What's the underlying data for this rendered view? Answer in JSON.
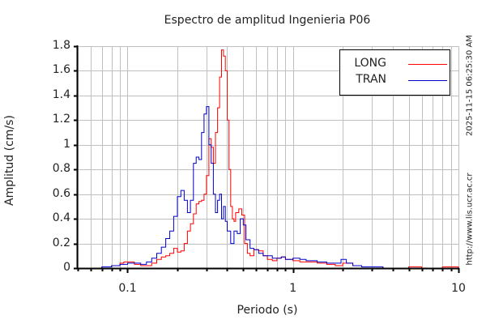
{
  "chart_data": {
    "type": "line",
    "title": "Espectro de amplitud Ingenieria P06",
    "xlabel": "Periodo (s)",
    "ylabel": "Amplitud (cm/s)",
    "xscale": "log",
    "xlim": [
      0.05,
      10
    ],
    "ylim": [
      0,
      1.8
    ],
    "x_ticks": [
      "0.1",
      "1",
      "10"
    ],
    "y_ticks": [
      "0",
      "0.2",
      "0.4",
      "0.6",
      "0.8",
      "1",
      "1.2",
      "1.4",
      "1.6",
      "1.8"
    ],
    "grid": true,
    "legend_position": "upper right",
    "series": [
      {
        "name": "LONG",
        "color": "#ff0000",
        "x": [
          0.06,
          0.07,
          0.08,
          0.09,
          0.095,
          0.1,
          0.11,
          0.12,
          0.13,
          0.14,
          0.15,
          0.16,
          0.17,
          0.18,
          0.19,
          0.2,
          0.21,
          0.22,
          0.23,
          0.24,
          0.25,
          0.26,
          0.27,
          0.28,
          0.29,
          0.3,
          0.31,
          0.32,
          0.33,
          0.34,
          0.35,
          0.36,
          0.37,
          0.38,
          0.39,
          0.4,
          0.41,
          0.42,
          0.43,
          0.44,
          0.45,
          0.47,
          0.49,
          0.51,
          0.53,
          0.55,
          0.58,
          0.62,
          0.66,
          0.7,
          0.75,
          0.8,
          0.85,
          0.9,
          1.0,
          1.1,
          1.2,
          1.4,
          1.6,
          1.8,
          2.0,
          2.3,
          2.6,
          3.0,
          3.5,
          4.0,
          5.0,
          6.0,
          7.0,
          8.0,
          10.0
        ],
        "values": [
          0.0,
          0.01,
          0.02,
          0.04,
          0.05,
          0.05,
          0.03,
          0.02,
          0.02,
          0.04,
          0.07,
          0.09,
          0.1,
          0.12,
          0.16,
          0.13,
          0.14,
          0.2,
          0.3,
          0.36,
          0.44,
          0.52,
          0.54,
          0.55,
          0.6,
          0.75,
          1.05,
          0.98,
          0.85,
          1.1,
          1.3,
          1.55,
          1.77,
          1.72,
          1.6,
          1.2,
          0.8,
          0.5,
          0.4,
          0.38,
          0.45,
          0.48,
          0.43,
          0.2,
          0.12,
          0.1,
          0.15,
          0.14,
          0.1,
          0.07,
          0.06,
          0.08,
          0.09,
          0.07,
          0.06,
          0.05,
          0.05,
          0.04,
          0.03,
          0.02,
          0.04,
          0.02,
          0.01,
          0.01,
          0.0,
          0.0,
          0.01,
          0.0,
          0.0,
          0.01,
          0.0
        ]
      },
      {
        "name": "TRAN",
        "color": "#0000cc",
        "x": [
          0.06,
          0.07,
          0.08,
          0.09,
          0.1,
          0.11,
          0.12,
          0.13,
          0.14,
          0.15,
          0.16,
          0.17,
          0.18,
          0.19,
          0.2,
          0.21,
          0.22,
          0.23,
          0.24,
          0.25,
          0.26,
          0.27,
          0.28,
          0.29,
          0.3,
          0.31,
          0.32,
          0.33,
          0.34,
          0.35,
          0.36,
          0.37,
          0.38,
          0.39,
          0.4,
          0.42,
          0.44,
          0.46,
          0.48,
          0.5,
          0.52,
          0.55,
          0.58,
          0.62,
          0.66,
          0.7,
          0.75,
          0.8,
          0.85,
          0.9,
          1.0,
          1.1,
          1.2,
          1.4,
          1.6,
          1.8,
          1.95,
          2.1,
          2.3,
          2.6,
          3.0,
          3.5,
          4.0,
          5.0,
          6.0,
          8.0,
          10.0
        ],
        "values": [
          0.0,
          0.01,
          0.02,
          0.03,
          0.04,
          0.04,
          0.03,
          0.05,
          0.08,
          0.12,
          0.17,
          0.24,
          0.3,
          0.42,
          0.58,
          0.63,
          0.55,
          0.45,
          0.55,
          0.85,
          0.9,
          0.88,
          1.1,
          1.25,
          1.31,
          1.0,
          0.85,
          0.6,
          0.45,
          0.55,
          0.6,
          0.4,
          0.5,
          0.38,
          0.3,
          0.2,
          0.3,
          0.28,
          0.4,
          0.35,
          0.23,
          0.16,
          0.15,
          0.12,
          0.1,
          0.1,
          0.08,
          0.08,
          0.09,
          0.07,
          0.08,
          0.07,
          0.06,
          0.05,
          0.04,
          0.04,
          0.07,
          0.04,
          0.02,
          0.01,
          0.01,
          0.0,
          0.0,
          0.0,
          0.0,
          0.0,
          0.0
        ]
      }
    ]
  },
  "header": {
    "title": "Espectro de amplitud Ingenieria P06"
  },
  "axes": {
    "xlabel": "Periodo (s)",
    "ylabel": "Amplitud (cm/s)",
    "x_ticks": [
      {
        "label": "0.1",
        "value": 0.1
      },
      {
        "label": "1",
        "value": 1
      },
      {
        "label": "10",
        "value": 10
      }
    ],
    "y_ticks": [
      {
        "label": "0",
        "value": 0
      },
      {
        "label": "0.2",
        "value": 0.2
      },
      {
        "label": "0.4",
        "value": 0.4
      },
      {
        "label": "0.6",
        "value": 0.6
      },
      {
        "label": "0.8",
        "value": 0.8
      },
      {
        "label": "1",
        "value": 1
      },
      {
        "label": "1.2",
        "value": 1.2
      },
      {
        "label": "1.4",
        "value": 1.4
      },
      {
        "label": "1.6",
        "value": 1.6
      },
      {
        "label": "1.8",
        "value": 1.8
      }
    ]
  },
  "legend": {
    "items": [
      {
        "label": "LONG",
        "color": "#ff0000"
      },
      {
        "label": "TRAN",
        "color": "#0000cc"
      }
    ]
  },
  "side_text": {
    "timestamp": "2025-11-15 06:25:30 AM",
    "url": "http://www.lis.ucr.ac.cr"
  },
  "style": {
    "grid_color": "#c0c0c0",
    "axis_color": "#000000"
  }
}
